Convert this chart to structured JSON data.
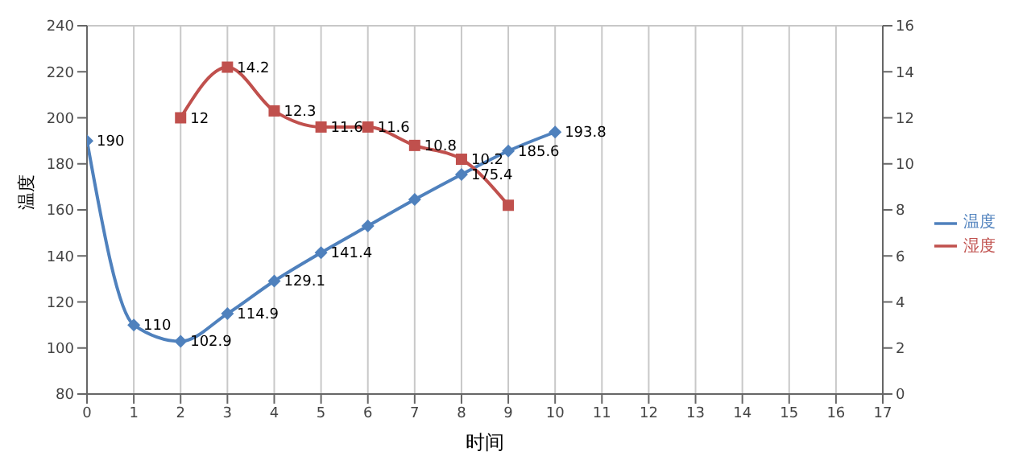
{
  "chart_data": {
    "type": "line",
    "xlabel": "时间",
    "ylabel": "温度",
    "x": [
      0,
      1,
      2,
      3,
      4,
      5,
      6,
      7,
      8,
      9,
      10
    ],
    "series": [
      {
        "name": "温度",
        "color": "#4f81bd",
        "marker": "diamond",
        "values": [
          190,
          110,
          102.9,
          114.9,
          129.1,
          141.4,
          153,
          164.5,
          175.4,
          185.6,
          193.8
        ],
        "value_labels": [
          "190",
          "110",
          "102.9",
          "114.9",
          "129.1",
          "141.4",
          null,
          null,
          "175.4",
          "185.6",
          "193.8"
        ]
      },
      {
        "name": "湿度",
        "color": "#c0504d",
        "marker": "square",
        "axis": "y2",
        "values": [
          null,
          null,
          12,
          14.2,
          12.3,
          11.6,
          11.6,
          10.8,
          10.2,
          8.2,
          null
        ],
        "value_labels": [
          null,
          null,
          "12",
          "14.2",
          "12.3",
          "11.6",
          "11.6",
          "10.8",
          "10.2",
          null,
          null
        ]
      }
    ],
    "xlim": [
      0,
      17
    ],
    "xticks": [
      0,
      1,
      2,
      3,
      4,
      5,
      6,
      7,
      8,
      9,
      10,
      11,
      12,
      13,
      14,
      15,
      16,
      17
    ],
    "ylim": [
      80,
      240
    ],
    "yticks": [
      80,
      100,
      120,
      140,
      160,
      180,
      200,
      220,
      240
    ],
    "y2lim": [
      0,
      16
    ],
    "y2ticks": [
      0,
      2,
      4,
      6,
      8,
      10,
      12,
      14,
      16
    ],
    "grid": true,
    "legend": "right"
  }
}
